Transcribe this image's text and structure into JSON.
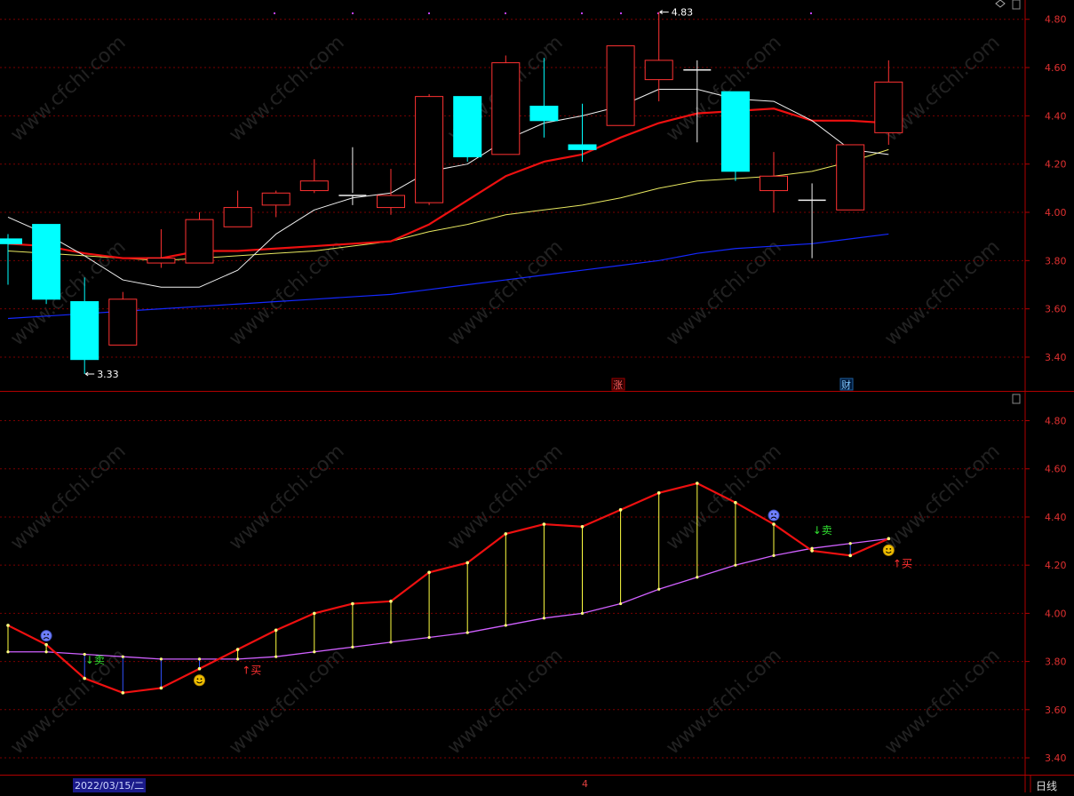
{
  "chart_data": [
    {
      "type": "candlestick",
      "y_ticks": [
        "4.80",
        "4.60",
        "4.40",
        "4.20",
        "4.00",
        "3.80",
        "3.60",
        "3.40"
      ],
      "ylim": [
        3.26,
        4.88
      ],
      "candles": [
        {
          "o": 3.89,
          "h": 3.91,
          "l": 3.7,
          "c": 3.87
        },
        {
          "o": 3.95,
          "h": 3.95,
          "l": 3.62,
          "c": 3.64
        },
        {
          "o": 3.63,
          "h": 3.73,
          "l": 3.33,
          "c": 3.39
        },
        {
          "o": 3.45,
          "h": 3.67,
          "l": 3.45,
          "c": 3.64
        },
        {
          "o": 3.79,
          "h": 3.93,
          "l": 3.77,
          "c": 3.81
        },
        {
          "o": 3.79,
          "h": 4.0,
          "l": 3.79,
          "c": 3.97
        },
        {
          "o": 3.94,
          "h": 4.09,
          "l": 3.94,
          "c": 4.02
        },
        {
          "o": 4.03,
          "h": 4.09,
          "l": 3.98,
          "c": 4.08
        },
        {
          "o": 4.09,
          "h": 4.22,
          "l": 4.08,
          "c": 4.13
        },
        {
          "o": 4.08,
          "h": 4.27,
          "l": 4.03,
          "c": 4.07
        },
        {
          "o": 4.02,
          "h": 4.18,
          "l": 3.99,
          "c": 4.07
        },
        {
          "o": 4.04,
          "h": 4.49,
          "l": 4.03,
          "c": 4.48
        },
        {
          "o": 4.48,
          "h": 4.48,
          "l": 4.21,
          "c": 4.23
        },
        {
          "o": 4.24,
          "h": 4.65,
          "l": 4.24,
          "c": 4.62
        },
        {
          "o": 4.44,
          "h": 4.64,
          "l": 4.31,
          "c": 4.38
        },
        {
          "o": 4.28,
          "h": 4.45,
          "l": 4.21,
          "c": 4.26
        },
        {
          "o": 4.36,
          "h": 4.69,
          "l": 4.36,
          "c": 4.69
        },
        {
          "o": 4.55,
          "h": 4.83,
          "l": 4.46,
          "c": 4.63
        },
        {
          "o": 4.59,
          "h": 4.63,
          "l": 4.29,
          "c": 4.59
        },
        {
          "o": 4.5,
          "h": 4.5,
          "l": 4.13,
          "c": 4.17
        },
        {
          "o": 4.09,
          "h": 4.25,
          "l": 4.0,
          "c": 4.15
        },
        {
          "o": 4.05,
          "h": 4.12,
          "l": 3.81,
          "c": 4.05
        },
        {
          "o": 4.01,
          "h": 4.28,
          "l": 4.01,
          "c": 4.28
        },
        {
          "o": 4.33,
          "h": 4.63,
          "l": 4.28,
          "c": 4.54
        }
      ],
      "ma_white": [
        3.98,
        3.91,
        3.82,
        3.72,
        3.69,
        3.69,
        3.76,
        3.91,
        4.01,
        4.06,
        4.08,
        4.17,
        4.2,
        4.3,
        4.37,
        4.4,
        4.44,
        4.51,
        4.51,
        4.47,
        4.46,
        4.38,
        4.26,
        4.24
      ],
      "ma_red": [
        3.87,
        3.86,
        3.83,
        3.81,
        3.81,
        3.84,
        3.84,
        3.85,
        3.86,
        3.87,
        3.88,
        3.95,
        4.05,
        4.15,
        4.21,
        4.24,
        4.31,
        4.37,
        4.41,
        4.42,
        4.43,
        4.38,
        4.38,
        4.37
      ],
      "ma_yellow": [
        3.84,
        3.83,
        3.82,
        3.81,
        3.8,
        3.81,
        3.82,
        3.83,
        3.84,
        3.86,
        3.88,
        3.92,
        3.95,
        3.99,
        4.01,
        4.03,
        4.06,
        4.1,
        4.13,
        4.14,
        4.15,
        4.17,
        4.21,
        4.26
      ],
      "ma_blue": [
        3.56,
        3.57,
        3.58,
        3.59,
        3.6,
        3.61,
        3.62,
        3.63,
        3.64,
        3.65,
        3.66,
        3.68,
        3.7,
        3.72,
        3.74,
        3.76,
        3.78,
        3.8,
        3.83,
        3.85,
        3.86,
        3.87,
        3.89,
        3.91
      ],
      "annotations": {
        "high": "4.83",
        "low": "3.33",
        "event_up": "涨",
        "event_fin": "财"
      }
    },
    {
      "type": "line",
      "y_ticks": [
        "4.80",
        "4.60",
        "4.40",
        "4.20",
        "4.00",
        "3.80",
        "3.60",
        "3.40"
      ],
      "ylim": [
        3.33,
        4.92
      ],
      "fast": [
        3.95,
        3.87,
        3.73,
        3.67,
        3.69,
        3.77,
        3.85,
        3.93,
        4.0,
        4.04,
        4.05,
        4.17,
        4.21,
        4.33,
        4.37,
        4.36,
        4.43,
        4.5,
        4.54,
        4.46,
        4.37,
        4.26,
        4.24,
        4.31
      ],
      "slow": [
        3.84,
        3.84,
        3.83,
        3.82,
        3.81,
        3.81,
        3.81,
        3.82,
        3.84,
        3.86,
        3.88,
        3.9,
        3.92,
        3.95,
        3.98,
        4.0,
        4.04,
        4.1,
        4.15,
        4.2,
        4.24,
        4.27,
        4.29,
        4.31
      ],
      "signals": [
        {
          "i": 1.0,
          "kind": "sad"
        },
        {
          "i": 2.2,
          "kind": "sell",
          "text": "卖"
        },
        {
          "i": 5.0,
          "kind": "happy"
        },
        {
          "i": 6.2,
          "kind": "buy",
          "text": "买"
        },
        {
          "i": 20.0,
          "kind": "sad"
        },
        {
          "i": 21.2,
          "kind": "sell",
          "text": "卖"
        },
        {
          "i": 23.0,
          "kind": "happy"
        },
        {
          "i": 23.2,
          "kind": "buy",
          "text": "买"
        }
      ]
    }
  ],
  "footer": {
    "date": "2022/03/15/二",
    "marker": "4",
    "period": "日线"
  },
  "watermark": "www.cfchi.com",
  "colors": {
    "up": "#ff3232",
    "down": "#00ffff",
    "grid": "#7a0000",
    "axis": "#b00000"
  }
}
